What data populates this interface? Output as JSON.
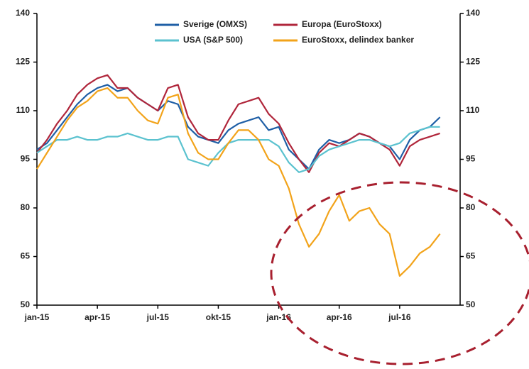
{
  "chart_data": {
    "type": "line",
    "categories": [
      "jan-15",
      null,
      null,
      null,
      null,
      null,
      "apr-15",
      null,
      null,
      null,
      null,
      null,
      "jul-15",
      null,
      null,
      null,
      null,
      null,
      "okt-15",
      null,
      null,
      null,
      null,
      null,
      "jan-16",
      null,
      null,
      null,
      null,
      null,
      "apr-16",
      null,
      null,
      null,
      null,
      null,
      "jul-16",
      null,
      null,
      null,
      null
    ],
    "series": [
      {
        "name": "Sverige (OMXS)",
        "color": "#1f5fa6",
        "values": [
          98,
          100,
          104,
          108,
          112,
          115,
          117,
          118,
          116,
          117,
          114,
          112,
          110,
          113,
          112,
          105,
          102,
          101,
          100,
          104,
          106,
          107,
          108,
          104,
          105,
          98,
          95,
          92,
          98,
          101,
          100,
          101,
          103,
          102,
          100,
          99,
          95,
          101,
          104,
          105,
          108
        ]
      },
      {
        "name": "Europa (EuroStoxx)",
        "color": "#b0263b",
        "values": [
          97,
          101,
          106,
          110,
          115,
          118,
          120,
          121,
          117,
          117,
          114,
          112,
          110,
          117,
          118,
          108,
          103,
          101,
          101,
          107,
          112,
          113,
          114,
          109,
          106,
          100,
          95,
          91,
          97,
          100,
          99,
          101,
          103,
          102,
          100,
          98,
          93,
          99,
          101,
          102,
          103
        ]
      },
      {
        "name": "USA (S&P 500)",
        "color": "#5bc2cf",
        "values": [
          97,
          99,
          101,
          101,
          102,
          101,
          101,
          102,
          102,
          103,
          102,
          101,
          101,
          102,
          102,
          95,
          94,
          93,
          97,
          100,
          101,
          101,
          101,
          101,
          99,
          94,
          91,
          92,
          96,
          98,
          99,
          100,
          101,
          101,
          100,
          99,
          100,
          103,
          104,
          105,
          105
        ]
      },
      {
        "name": "EuroStoxx, delindex banker",
        "color": "#f2a31a",
        "values": [
          92,
          97,
          102,
          107,
          111,
          113,
          116,
          117,
          114,
          114,
          110,
          107,
          106,
          114,
          115,
          103,
          97,
          95,
          95,
          100,
          104,
          104,
          101,
          95,
          93,
          86,
          75,
          68,
          72,
          79,
          84,
          76,
          79,
          80,
          75,
          72,
          59,
          62,
          66,
          68,
          72
        ]
      }
    ],
    "ylim": [
      50,
      140
    ],
    "yticks": [
      50,
      65,
      80,
      95,
      110,
      125,
      140
    ],
    "y2lim": [
      50,
      140
    ],
    "y2ticks": [
      50,
      65,
      80,
      95,
      110,
      125,
      140
    ],
    "legend": "upper center"
  }
}
